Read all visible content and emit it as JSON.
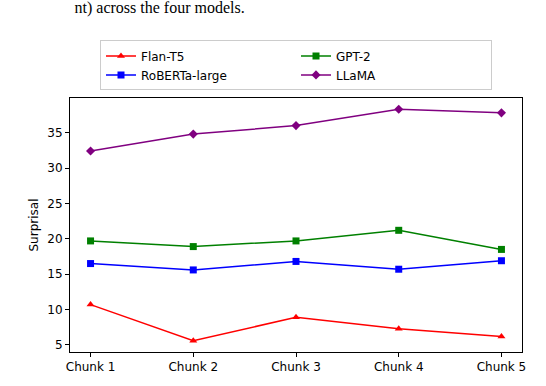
{
  "chart_data": {
    "type": "line",
    "title": "nt) across the four models.",
    "y_label": "Surprisal",
    "categories": [
      "Chunk 1",
      "Chunk 2",
      "Chunk 3",
      "Chunk 4",
      "Chunk 5"
    ],
    "series": [
      {
        "name": "Flan-T5",
        "color": "#ff0000",
        "marker": "triangle-up",
        "line_style": "solid",
        "values": [
          10.7,
          5.6,
          8.9,
          7.3,
          6.2
        ]
      },
      {
        "name": "RoBERTa-large",
        "color": "#0000ff",
        "marker": "square",
        "line_style": "solid",
        "values": [
          16.5,
          15.6,
          16.8,
          15.7,
          16.9
        ]
      },
      {
        "name": "GPT-2",
        "color": "#008000",
        "marker": "square",
        "line_style": "solid",
        "values": [
          19.7,
          18.9,
          19.7,
          21.2,
          18.5
        ]
      },
      {
        "name": "LLaMA",
        "color": "#800080",
        "marker": "diamond",
        "line_style": "solid",
        "values": [
          32.4,
          34.8,
          36.0,
          38.3,
          37.8
        ]
      }
    ],
    "ylim": [
      4.0,
      39.9
    ],
    "yticks": [
      5,
      10,
      15,
      20,
      25,
      30,
      35
    ],
    "grid": false,
    "legend": "top"
  }
}
